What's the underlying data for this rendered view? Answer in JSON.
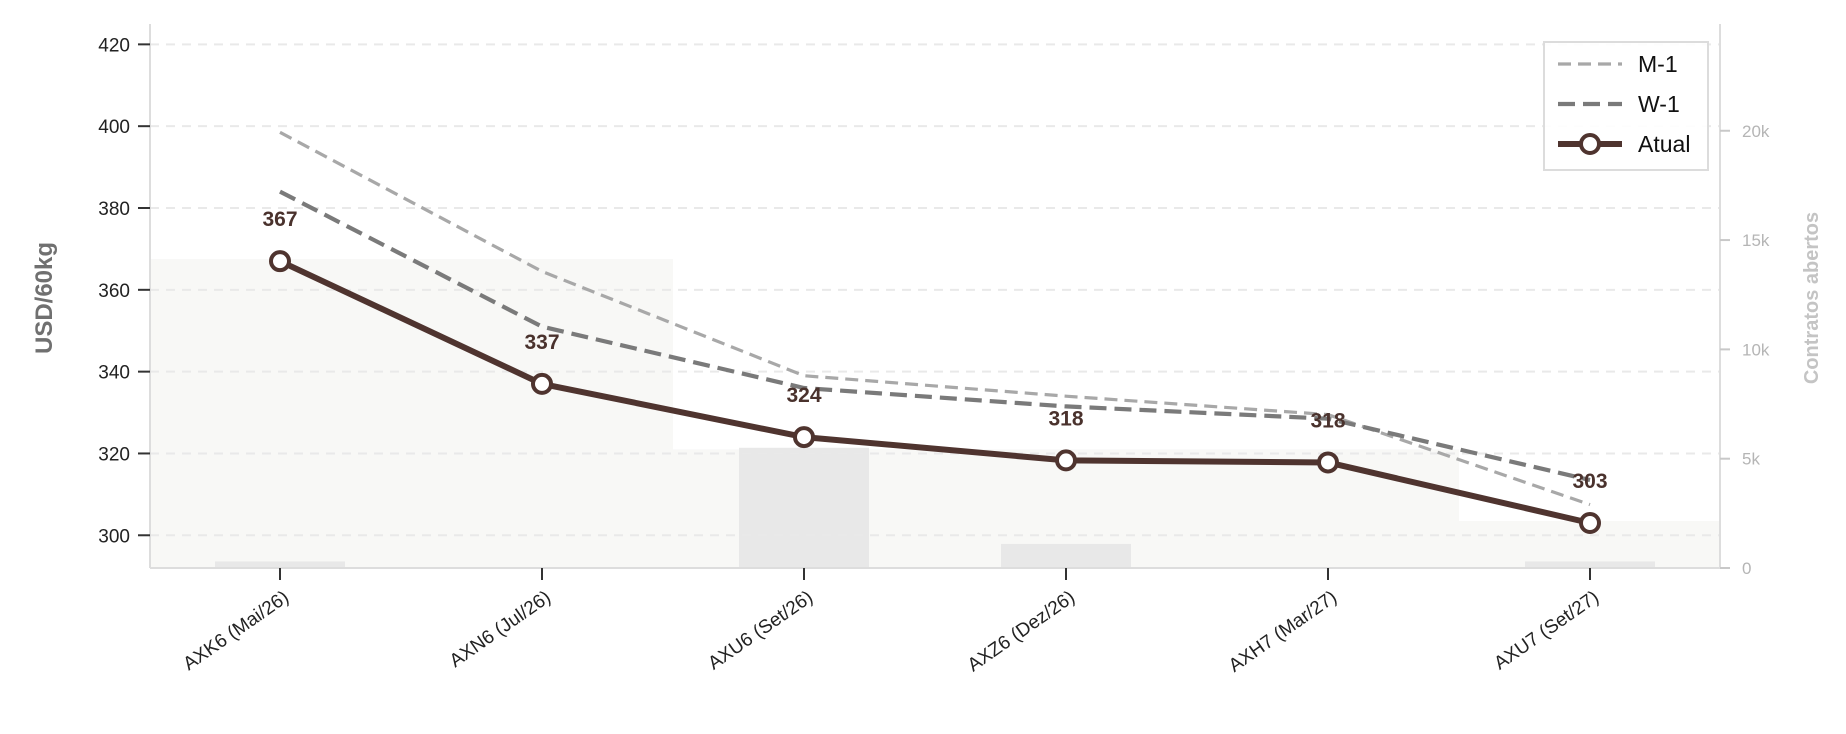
{
  "chart_data": {
    "type": "line",
    "title": "",
    "xlabel": "",
    "ylabel": "USD/60kg",
    "y2label": "Contratos abertos",
    "ylim": [
      292,
      424
    ],
    "y2lim": [
      0,
      24700
    ],
    "yticks": [
      300,
      320,
      340,
      360,
      380,
      400,
      420
    ],
    "y2ticks": [
      0,
      5000,
      10000,
      15000,
      20000
    ],
    "y2tick_labels": [
      "0",
      "5k",
      "10k",
      "15k",
      "20k"
    ],
    "categories": [
      "AXK6 (Mai/26)",
      "AXN6 (Jul/26)",
      "AXU6 (Set/26)",
      "AXZ6 (Dez/26)",
      "AXH7 (Mar/27)",
      "AXU7 (Set/27)"
    ],
    "series": [
      {
        "name": "M-1",
        "values": [
          398.5,
          364.5,
          339,
          334,
          329.5,
          307.5
        ],
        "color": "#a8a8a8",
        "style": "dashed"
      },
      {
        "name": "W-1",
        "values": [
          384,
          351,
          336,
          331.5,
          328.5,
          313.5
        ],
        "color": "#7a7a7a",
        "style": "dashed"
      },
      {
        "name": "Atual",
        "values": [
          367,
          337,
          324,
          318.3,
          317.8,
          303
        ],
        "color": "#4f342f",
        "style": "solid-markers"
      }
    ],
    "data_labels": [
      "367",
      "337",
      "324",
      "318",
      "318",
      "303"
    ],
    "open_interest": [
      300,
      0,
      5500,
      1100,
      0,
      300
    ],
    "open_interest_color": "#e8e8e8",
    "area_fill_color": "#f8f8f6",
    "grid": true,
    "legend_position": "top-right"
  }
}
